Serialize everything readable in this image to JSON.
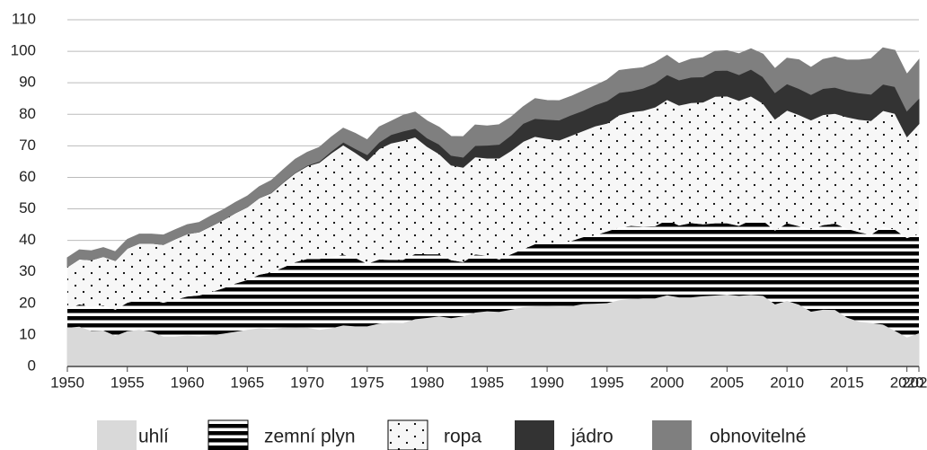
{
  "chart_data": {
    "type": "stacked_area",
    "x": [
      1950,
      1951,
      1952,
      1953,
      1954,
      1955,
      1956,
      1957,
      1958,
      1959,
      1960,
      1961,
      1962,
      1963,
      1964,
      1965,
      1966,
      1967,
      1968,
      1969,
      1970,
      1971,
      1972,
      1973,
      1974,
      1975,
      1976,
      1977,
      1978,
      1979,
      1980,
      1981,
      1982,
      1983,
      1984,
      1985,
      1986,
      1987,
      1988,
      1989,
      1990,
      1991,
      1992,
      1993,
      1994,
      1995,
      1996,
      1997,
      1998,
      1999,
      2000,
      2001,
      2002,
      2003,
      2004,
      2005,
      2006,
      2007,
      2008,
      2009,
      2010,
      2011,
      2012,
      2013,
      2014,
      2015,
      2016,
      2017,
      2018,
      2019,
      2020,
      2021
    ],
    "series": [
      {
        "name": "uhlí",
        "color": "#d9d9d9",
        "pattern": "solid",
        "values": [
          12.3,
          12.6,
          11.3,
          11.4,
          9.7,
          11.2,
          11.6,
          11.0,
          9.5,
          9.5,
          9.8,
          9.6,
          9.9,
          10.4,
          11.0,
          11.6,
          12.1,
          11.9,
          12.3,
          12.4,
          12.3,
          11.6,
          12.1,
          13.0,
          12.7,
          12.7,
          13.6,
          13.9,
          13.8,
          15.0,
          15.4,
          15.9,
          15.3,
          15.9,
          17.1,
          17.5,
          17.3,
          18.0,
          18.8,
          19.1,
          19.2,
          19.0,
          19.1,
          19.8,
          19.9,
          20.1,
          21.0,
          21.4,
          21.6,
          21.6,
          22.6,
          21.9,
          21.9,
          22.3,
          22.5,
          22.8,
          22.4,
          22.7,
          22.4,
          19.7,
          20.8,
          19.6,
          17.4,
          18.0,
          17.9,
          15.5,
          14.2,
          13.8,
          13.3,
          11.3,
          9.2,
          10.5
        ]
      },
      {
        "name": "zemní plyn",
        "color": "#000000",
        "pattern": "stripes",
        "values": [
          6.0,
          7.1,
          7.6,
          8.0,
          8.3,
          9.0,
          9.6,
          10.2,
          10.7,
          11.7,
          12.4,
          12.9,
          13.7,
          14.4,
          15.3,
          15.8,
          17.0,
          17.9,
          19.1,
          20.7,
          21.8,
          22.5,
          22.7,
          22.5,
          21.7,
          19.9,
          20.3,
          19.9,
          20.0,
          20.7,
          20.2,
          19.7,
          18.4,
          17.2,
          18.4,
          17.7,
          16.6,
          17.6,
          18.4,
          19.7,
          19.6,
          20.0,
          20.7,
          21.2,
          21.7,
          22.7,
          23.1,
          23.2,
          22.8,
          22.9,
          23.8,
          22.8,
          23.6,
          22.8,
          22.9,
          22.6,
          22.2,
          23.7,
          23.8,
          23.4,
          24.6,
          24.9,
          26.1,
          26.8,
          27.4,
          28.2,
          28.4,
          28.0,
          31.0,
          32.1,
          31.5,
          31.5
        ]
      },
      {
        "name": "ropa",
        "color": "#000000",
        "pattern": "dots",
        "values": [
          13.3,
          14.4,
          14.9,
          15.5,
          15.6,
          17.3,
          17.9,
          17.9,
          18.5,
          19.3,
          19.9,
          20.2,
          21.0,
          21.7,
          22.4,
          23.2,
          24.4,
          25.3,
          27.0,
          28.3,
          29.5,
          30.6,
          32.9,
          34.8,
          33.5,
          32.7,
          35.2,
          37.1,
          37.9,
          37.1,
          34.2,
          31.9,
          30.2,
          30.1,
          31.0,
          30.9,
          32.2,
          32.9,
          34.2,
          34.2,
          33.5,
          32.8,
          33.5,
          33.8,
          34.7,
          34.4,
          35.7,
          36.2,
          36.8,
          37.8,
          38.3,
          38.2,
          38.2,
          38.8,
          40.3,
          40.4,
          39.8,
          39.4,
          37.3,
          35.4,
          35.9,
          35.4,
          34.7,
          35.1,
          35.0,
          35.5,
          35.8,
          36.2,
          36.9,
          36.9,
          32.2,
          35.0
        ]
      },
      {
        "name": "jádro",
        "color": "#333333",
        "pattern": "solid",
        "values": [
          0,
          0,
          0,
          0,
          0,
          0,
          0,
          0,
          0,
          0,
          0.01,
          0.02,
          0.03,
          0.04,
          0.04,
          0.04,
          0.06,
          0.09,
          0.14,
          0.15,
          0.24,
          0.41,
          0.58,
          0.91,
          1.27,
          1.9,
          2.1,
          2.7,
          3.0,
          2.8,
          2.7,
          3.0,
          3.1,
          3.2,
          3.6,
          4.1,
          4.4,
          4.9,
          5.7,
          5.7,
          6.1,
          6.4,
          6.5,
          6.4,
          6.7,
          7.1,
          7.1,
          6.6,
          7.1,
          7.6,
          7.9,
          8.0,
          8.1,
          8.0,
          8.2,
          8.2,
          8.2,
          8.5,
          8.4,
          8.4,
          8.4,
          8.3,
          8.1,
          8.3,
          8.3,
          8.3,
          8.4,
          8.4,
          8.4,
          8.5,
          8.2,
          8.1
        ]
      },
      {
        "name": "obnovitelné",
        "color": "#7f7f7f",
        "pattern": "solid",
        "values": [
          2.9,
          2.9,
          2.9,
          2.8,
          2.8,
          2.8,
          2.9,
          2.9,
          3.0,
          2.9,
          2.9,
          3.0,
          3.2,
          3.2,
          3.3,
          3.4,
          3.5,
          3.8,
          3.9,
          4.2,
          4.1,
          4.4,
          4.5,
          4.4,
          4.8,
          4.7,
          4.8,
          4.2,
          5.0,
          5.1,
          5.4,
          5.4,
          6.0,
          6.5,
          6.5,
          6.1,
          6.2,
          5.7,
          5.3,
          6.3,
          6.0,
          6.1,
          5.9,
          6.2,
          6.1,
          6.6,
          7.0,
          7.0,
          6.5,
          6.5,
          6.1,
          5.2,
          5.7,
          6.1,
          6.1,
          6.2,
          6.6,
          6.5,
          7.2,
          7.6,
          8.1,
          9.1,
          8.6,
          9.2,
          9.6,
          9.7,
          10.4,
          11.2,
          11.5,
          11.5,
          11.6,
          12.2
        ]
      }
    ],
    "xlim": [
      1950,
      2021
    ],
    "xticks": [
      1950,
      1955,
      1960,
      1965,
      1970,
      1975,
      1980,
      1985,
      1990,
      1995,
      2000,
      2005,
      2010,
      2015,
      2020,
      2021
    ],
    "ylim": [
      0,
      110
    ],
    "yticks": [
      0,
      10,
      20,
      30,
      40,
      50,
      60,
      70,
      80,
      90,
      100,
      110
    ],
    "grid": true,
    "legend": "bottom"
  }
}
